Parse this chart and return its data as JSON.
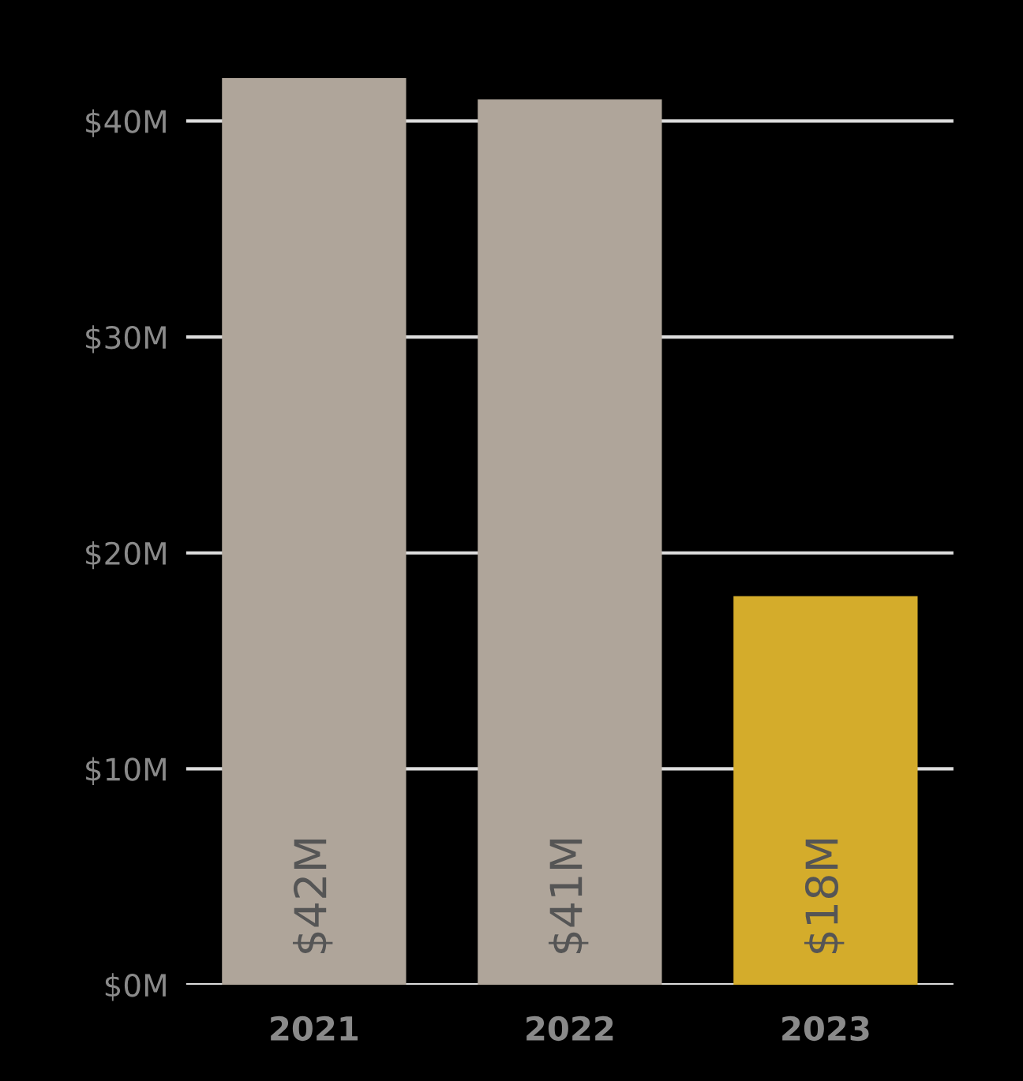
{
  "chart_data": {
    "type": "bar",
    "categories": [
      "2021",
      "2022",
      "2023"
    ],
    "values": [
      42,
      41,
      18
    ],
    "colors": [
      "#afa59a",
      "#afa59a",
      "#d4ac2b"
    ],
    "value_labels": [
      "$42M",
      "$41M",
      "$18M"
    ],
    "ylim": [
      0,
      42
    ],
    "yticks": [
      {
        "value": 0,
        "label": "$0M"
      },
      {
        "value": 10,
        "label": "$10M"
      },
      {
        "value": 20,
        "label": "$20M"
      },
      {
        "value": 30,
        "label": "$30M"
      },
      {
        "value": 40,
        "label": "$40M"
      }
    ],
    "grid": "y"
  }
}
